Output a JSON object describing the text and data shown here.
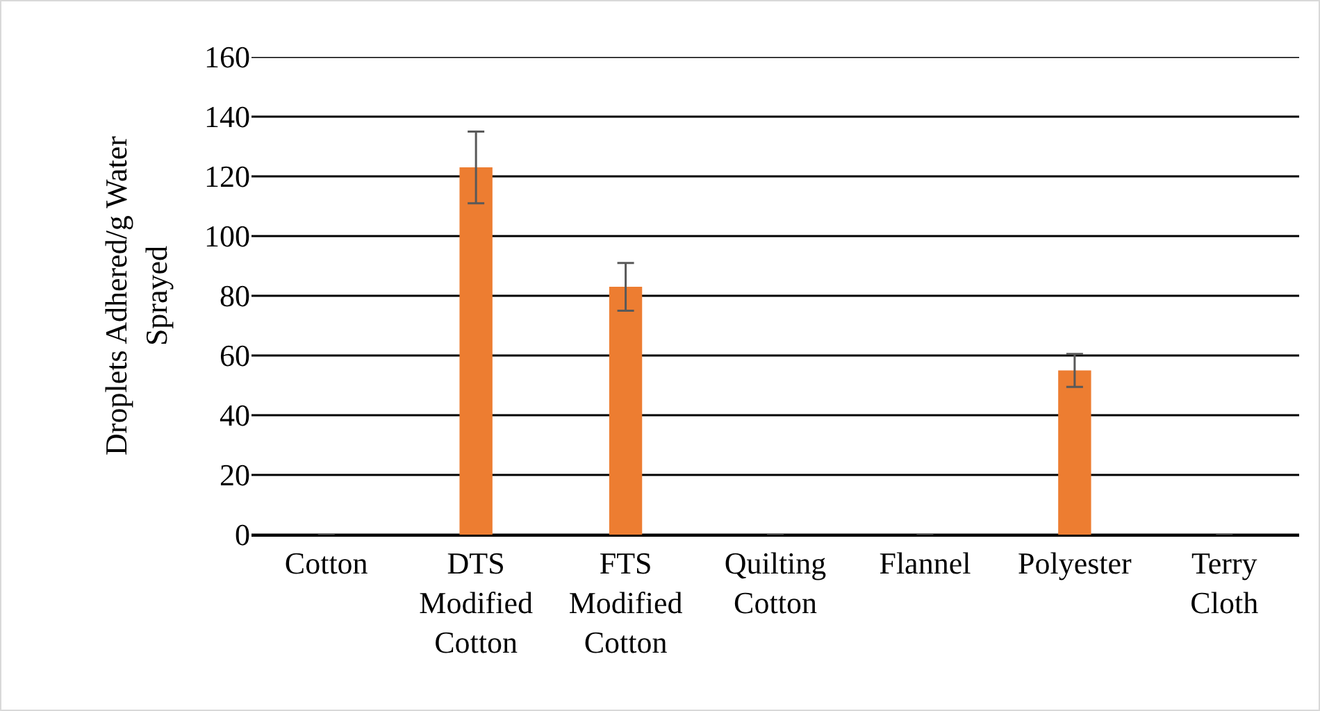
{
  "chart_data": {
    "type": "bar",
    "ylabel": "Droplets Adhered/g Water Sprayed",
    "categories": [
      "Cotton",
      "DTS Modified Cotton",
      "FTS Modified Cotton",
      "Quilting Cotton",
      "Flannel",
      "Polyester",
      "Terry Cloth"
    ],
    "values": [
      0,
      123,
      83,
      0,
      0,
      55,
      0
    ],
    "errors": [
      null,
      12,
      8,
      null,
      null,
      5.5,
      null
    ],
    "color": "#ed7d31",
    "ylim": [
      0,
      160
    ],
    "yticks": [
      0,
      20,
      40,
      60,
      80,
      100,
      120,
      140,
      160
    ],
    "grid": "y"
  }
}
